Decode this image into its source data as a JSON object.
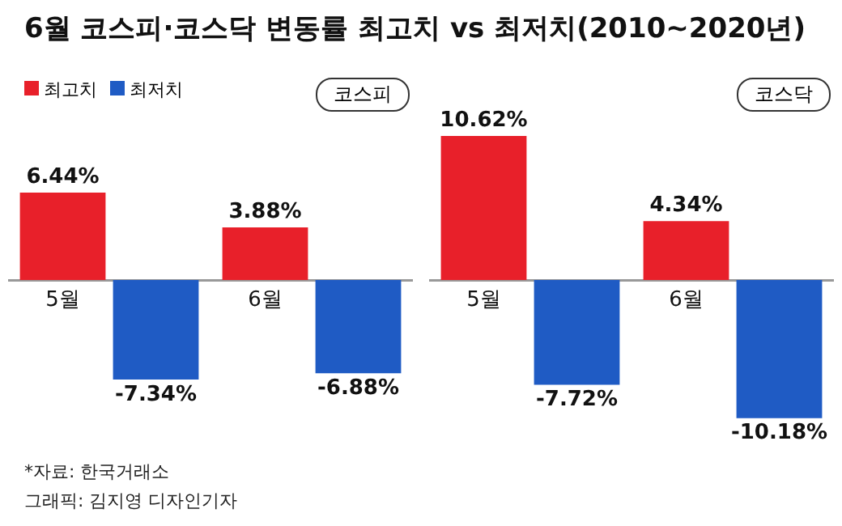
{
  "chart_data": [
    {
      "type": "bar",
      "title": "6월 코스피·코스닥 변동률 최고치 vs 최저치(2010~2020년)",
      "subtitle": "코스피",
      "categories": [
        "5월",
        "6월"
      ],
      "legend": "top left",
      "series": [
        {
          "name": "최고치",
          "color": "#e8202a",
          "values": [
            6.44,
            3.88
          ],
          "value_labels": [
            "6.44%",
            "3.88%"
          ]
        },
        {
          "name": "최저치",
          "color": "#1f5bc4",
          "values": [
            -7.34,
            -6.88
          ],
          "value_labels": [
            "-7.34%",
            "-6.88%"
          ]
        }
      ],
      "annotations": [
        "*자료: 한국거래소",
        "그래픽: 김지영 디자인기자"
      ]
    },
    {
      "type": "bar",
      "subtitle": "코스닥",
      "categories": [
        "5월",
        "6월"
      ],
      "series": [
        {
          "color": "#e8202a",
          "values": [
            10.62,
            4.34
          ],
          "value_labels": [
            "10.62%",
            "4.34%"
          ]
        },
        {
          "color": "#1f5bc4",
          "values": [
            -7.72,
            -10.18
          ],
          "value_labels": [
            "-7.72%",
            "-10.18%"
          ]
        }
      ]
    }
  ]
}
